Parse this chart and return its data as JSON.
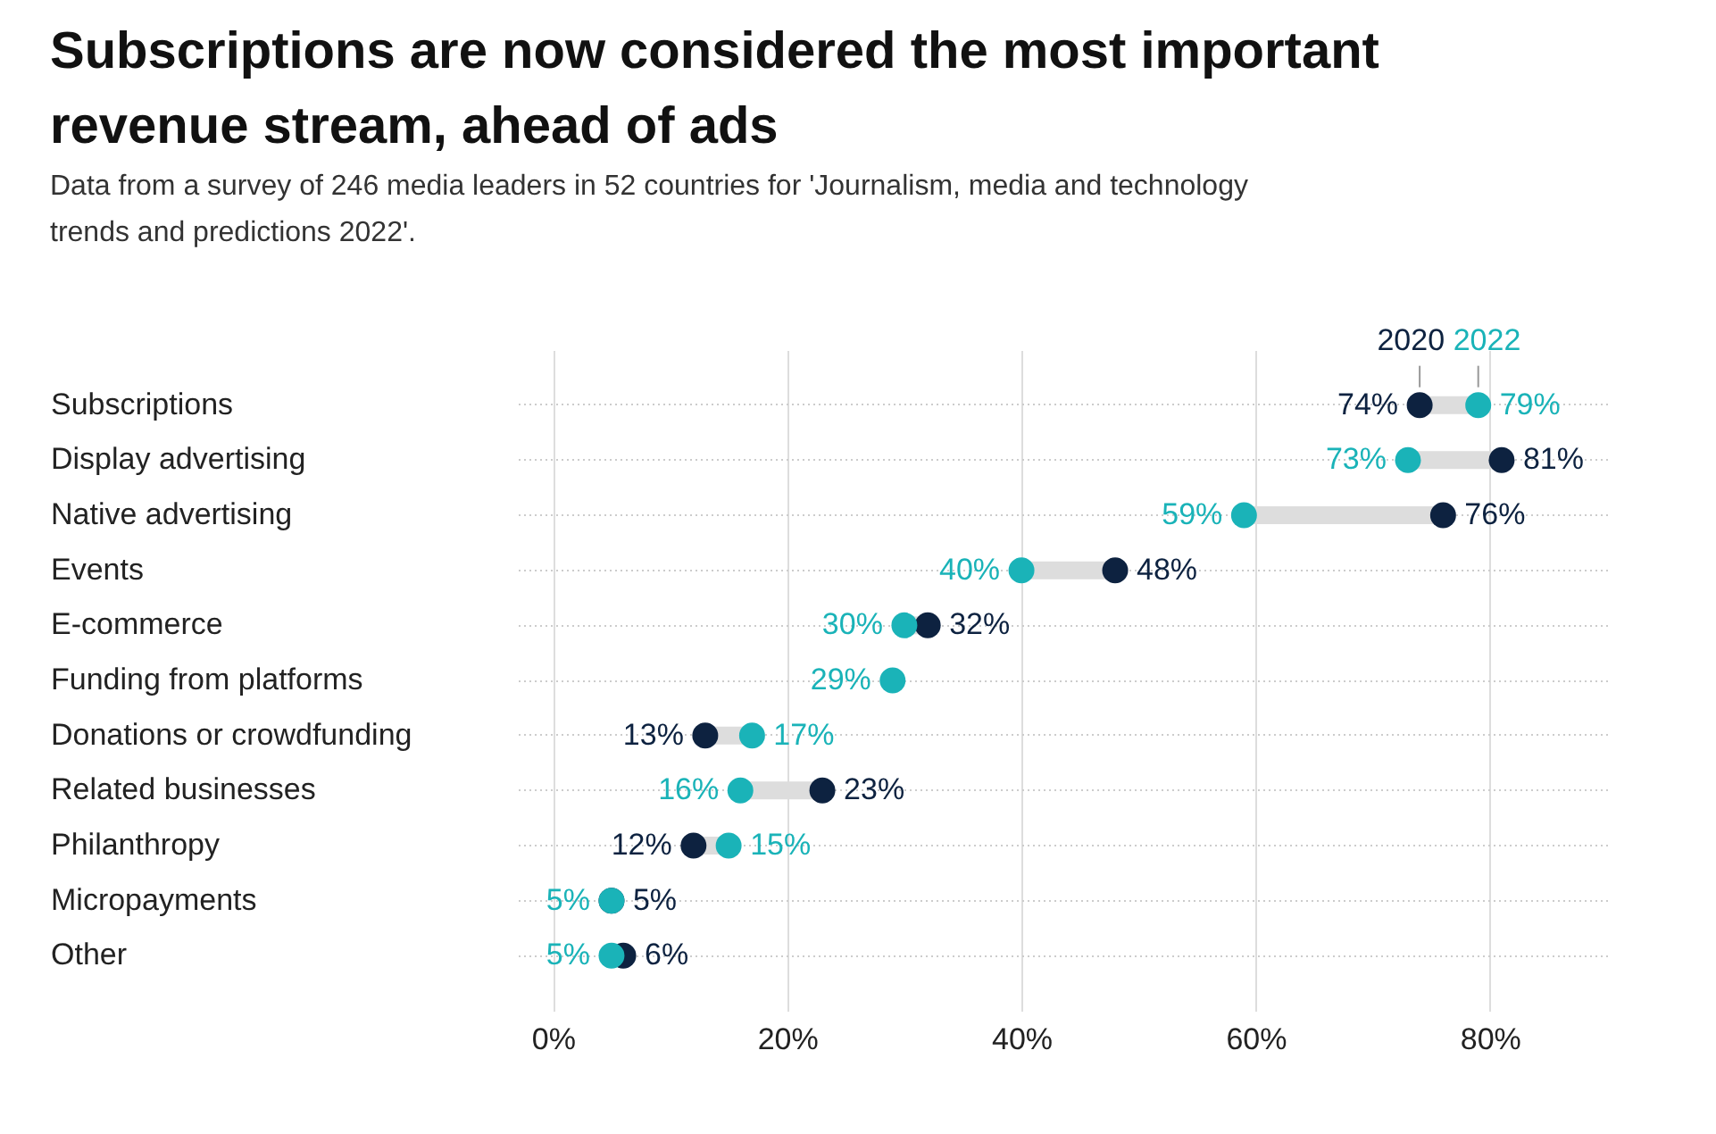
{
  "chart_data": {
    "type": "scatter",
    "orientation": "horizontal",
    "title": "Subscriptions are now considered the most important revenue stream, ahead of ads",
    "subtitle": "Data from a survey of 246 media leaders in 52 countries for 'Journalism, media and technology trends and predictions 2022'.",
    "categories": [
      "Subscriptions",
      "Display advertising",
      "Native advertising",
      "Events",
      "E-commerce",
      "Funding from platforms",
      "Donations or crowdfunding",
      "Related businesses",
      "Philanthropy",
      "Micropayments",
      "Other"
    ],
    "series": [
      {
        "name": "2020",
        "color": "#0d2240",
        "values": [
          74,
          81,
          76,
          48,
          32,
          null,
          13,
          23,
          12,
          5,
          6
        ],
        "value_labels": [
          "74%",
          "81%",
          "76%",
          "48%",
          "32%",
          null,
          "13%",
          "23%",
          "12%",
          "5%",
          "6%"
        ]
      },
      {
        "name": "2022",
        "color": "#1ab3b8",
        "values": [
          79,
          73,
          59,
          40,
          30,
          29,
          17,
          16,
          15,
          5,
          5
        ],
        "value_labels": [
          "79%",
          "73%",
          "59%",
          "40%",
          "30%",
          "29%",
          "17%",
          "16%",
          "15%",
          "5%",
          "5%"
        ]
      }
    ],
    "xlim": [
      -3,
      90
    ],
    "xticks": [
      {
        "value": 0,
        "label": "0%"
      },
      {
        "value": 20,
        "label": "20%"
      },
      {
        "value": 40,
        "label": "40%"
      },
      {
        "value": 60,
        "label": "60%"
      },
      {
        "value": 80,
        "label": "80%"
      }
    ],
    "grid": true,
    "legend": false,
    "marker": "circle"
  }
}
